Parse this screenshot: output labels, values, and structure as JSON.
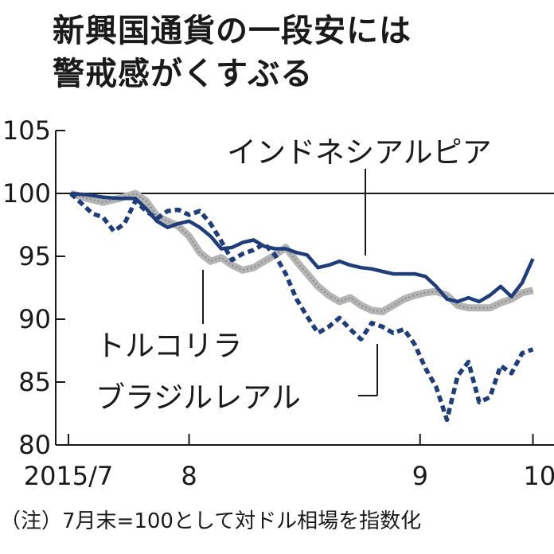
{
  "title_line1": "新興国通貨の一段安には",
  "title_line2": "警戒感がくすぶる",
  "note": "（注）7月末=100として対ドル相場を指数化",
  "colors": {
    "rupiah": "#1f3d7a",
    "real": "#1f3d7a",
    "lira": "#b5b5b5",
    "axis": "#1a1a1a"
  },
  "chart_data": {
    "type": "line",
    "title": "新興国通貨の一段安には警戒感がくすぶる",
    "ylim": [
      80,
      105
    ],
    "yticks": [
      105,
      100,
      95,
      90,
      85,
      80
    ],
    "xlim": [
      0,
      86
    ],
    "xticks": [
      {
        "label": "2015/7",
        "t": 0
      },
      {
        "label": "8",
        "t": 22
      },
      {
        "label": "9",
        "t": 65
      },
      {
        "label": "10",
        "t": 86
      }
    ],
    "reference_line": 100,
    "series": [
      {
        "name": "トルコリラ",
        "style": "gray-thick",
        "points": [
          [
            0,
            100
          ],
          [
            3,
            99.6
          ],
          [
            6,
            99.3
          ],
          [
            9,
            99.6
          ],
          [
            12,
            100
          ],
          [
            14,
            99.4
          ],
          [
            16,
            98.2
          ],
          [
            18,
            97.8
          ],
          [
            20,
            97.4
          ],
          [
            22,
            96.6
          ],
          [
            24,
            95.3
          ],
          [
            26,
            94.6
          ],
          [
            28,
            94.9
          ],
          [
            30,
            94.3
          ],
          [
            32,
            93.9
          ],
          [
            34,
            94.1
          ],
          [
            36,
            94.6
          ],
          [
            38,
            95.1
          ],
          [
            40,
            95.7
          ],
          [
            42,
            94.6
          ],
          [
            44,
            93.6
          ],
          [
            46,
            92.6
          ],
          [
            48,
            91.9
          ],
          [
            50,
            91.4
          ],
          [
            52,
            91.7
          ],
          [
            54,
            91.1
          ],
          [
            56,
            90.7
          ],
          [
            58,
            90.6
          ],
          [
            60,
            91.1
          ],
          [
            62,
            91.6
          ],
          [
            64,
            91.9
          ],
          [
            66,
            92.1
          ],
          [
            68,
            92.2
          ],
          [
            70,
            91.9
          ],
          [
            72,
            91.1
          ],
          [
            74,
            90.9
          ],
          [
            76,
            90.9
          ],
          [
            78,
            90.9
          ],
          [
            80,
            91.3
          ],
          [
            82,
            91.6
          ],
          [
            84,
            92.1
          ],
          [
            86,
            92.3
          ]
        ]
      },
      {
        "name": "インドネシアルピア",
        "style": "navy-solid",
        "points": [
          [
            0,
            100
          ],
          [
            3,
            99.9
          ],
          [
            6,
            99.7
          ],
          [
            9,
            99.6
          ],
          [
            12,
            99.6
          ],
          [
            14,
            98.8
          ],
          [
            16,
            97.8
          ],
          [
            18,
            97.3
          ],
          [
            20,
            97.6
          ],
          [
            22,
            97.8
          ],
          [
            24,
            97.3
          ],
          [
            26,
            96.6
          ],
          [
            28,
            95.6
          ],
          [
            30,
            95.7
          ],
          [
            32,
            96.1
          ],
          [
            34,
            96.3
          ],
          [
            36,
            95.8
          ],
          [
            38,
            95.6
          ],
          [
            40,
            95.6
          ],
          [
            42,
            95.3
          ],
          [
            44,
            95.1
          ],
          [
            46,
            94.1
          ],
          [
            48,
            94.3
          ],
          [
            50,
            94.6
          ],
          [
            52,
            94.3
          ],
          [
            54,
            94.1
          ],
          [
            56,
            94.0
          ],
          [
            58,
            93.8
          ],
          [
            60,
            93.6
          ],
          [
            62,
            93.6
          ],
          [
            64,
            93.6
          ],
          [
            66,
            93.4
          ],
          [
            68,
            92.6
          ],
          [
            70,
            91.6
          ],
          [
            72,
            91.4
          ],
          [
            74,
            91.7
          ],
          [
            76,
            91.4
          ],
          [
            78,
            91.9
          ],
          [
            80,
            92.6
          ],
          [
            82,
            91.8
          ],
          [
            84,
            92.9
          ],
          [
            86,
            94.8
          ]
        ]
      },
      {
        "name": "ブラジルレアル",
        "style": "navy-dashed",
        "points": [
          [
            0,
            100
          ],
          [
            2,
            99.2
          ],
          [
            4,
            98.4
          ],
          [
            6,
            98.1
          ],
          [
            8,
            97.0
          ],
          [
            10,
            97.6
          ],
          [
            12,
            99.4
          ],
          [
            14,
            98.6
          ],
          [
            16,
            98.0
          ],
          [
            18,
            98.6
          ],
          [
            20,
            98.7
          ],
          [
            22,
            98.3
          ],
          [
            24,
            98.6
          ],
          [
            26,
            97.6
          ],
          [
            28,
            96.2
          ],
          [
            30,
            94.7
          ],
          [
            32,
            95.2
          ],
          [
            34,
            95.5
          ],
          [
            36,
            96.0
          ],
          [
            38,
            95.1
          ],
          [
            40,
            93.6
          ],
          [
            42,
            91.6
          ],
          [
            44,
            90.2
          ],
          [
            46,
            88.9
          ],
          [
            48,
            89.4
          ],
          [
            50,
            90.1
          ],
          [
            52,
            89.2
          ],
          [
            54,
            88.4
          ],
          [
            56,
            89.7
          ],
          [
            58,
            89.4
          ],
          [
            60,
            88.9
          ],
          [
            62,
            89.2
          ],
          [
            64,
            88.0
          ],
          [
            66,
            86.1
          ],
          [
            68,
            84.6
          ],
          [
            70,
            82.0
          ],
          [
            72,
            85.5
          ],
          [
            74,
            86.6
          ],
          [
            76,
            83.4
          ],
          [
            78,
            83.8
          ],
          [
            80,
            86.3
          ],
          [
            82,
            85.7
          ],
          [
            84,
            87.3
          ],
          [
            86,
            87.6
          ]
        ]
      }
    ],
    "labels": {
      "rupiah": "インドネシアルピア",
      "lira": "トルコリラ",
      "real": "ブラジルレアル"
    }
  }
}
